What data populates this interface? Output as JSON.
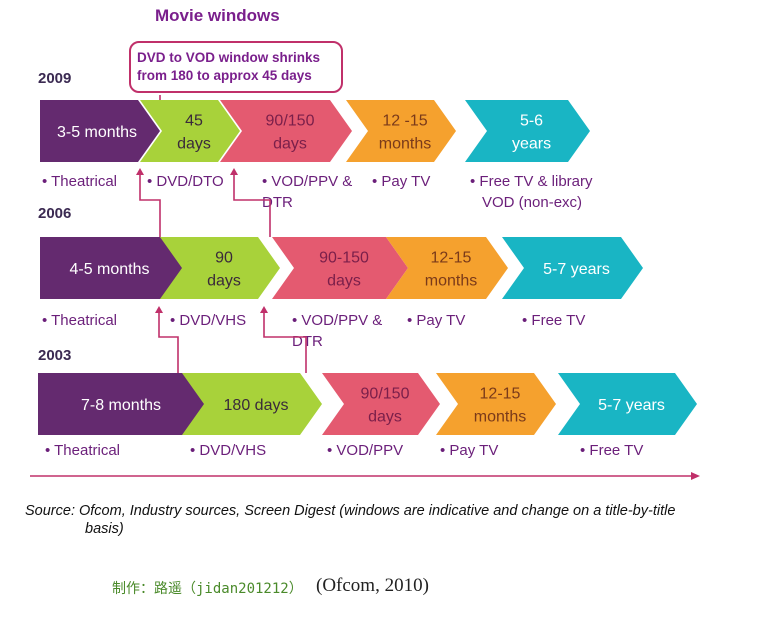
{
  "title": "Movie windows",
  "callout": {
    "line1": "DVD to VOD window shrinks",
    "line2": "from 180 to approx 45 days"
  },
  "rows": [
    {
      "year": "2009",
      "segments": [
        {
          "lines": [
            "3-5 months"
          ],
          "color": "#642a6f",
          "text_color": "#ffffff"
        },
        {
          "lines": [
            "45",
            "days"
          ],
          "color": "#a8d23a",
          "text_color": "#3a2a3a"
        },
        {
          "lines": [
            "90/150",
            "days"
          ],
          "color": "#e45a70",
          "text_color": "#7a1f4a"
        },
        {
          "lines": [
            "12 -15",
            "months"
          ],
          "color": "#f5a12e",
          "text_color": "#7a3a1a"
        },
        {
          "lines": [
            "5-6",
            "years"
          ],
          "color": "#19b5c4",
          "text_color": "#ffffff"
        }
      ],
      "labels": [
        {
          "lines": [
            "• Theatrical"
          ]
        },
        {
          "lines": [
            "• DVD/DTO"
          ]
        },
        {
          "lines": [
            "• VOD/PPV &",
            "DTR"
          ]
        },
        {
          "lines": [
            "• Pay TV"
          ]
        },
        {
          "lines": [
            "• Free TV & library",
            "VOD (non-exc)"
          ]
        }
      ]
    },
    {
      "year": "2006",
      "segments": [
        {
          "lines": [
            "4-5 months"
          ],
          "color": "#642a6f",
          "text_color": "#ffffff"
        },
        {
          "lines": [
            "90",
            "days"
          ],
          "color": "#a8d23a",
          "text_color": "#3a2a3a"
        },
        {
          "lines": [
            "90-150",
            "days"
          ],
          "color": "#e45a70",
          "text_color": "#7a1f4a"
        },
        {
          "lines": [
            "12-15",
            "months"
          ],
          "color": "#f5a12e",
          "text_color": "#7a3a1a"
        },
        {
          "lines": [
            "5-7 years"
          ],
          "color": "#19b5c4",
          "text_color": "#ffffff"
        }
      ],
      "labels": [
        {
          "lines": [
            "• Theatrical"
          ]
        },
        {
          "lines": [
            "• DVD/VHS"
          ]
        },
        {
          "lines": [
            "• VOD/PPV &",
            "DTR"
          ]
        },
        {
          "lines": [
            "• Pay TV"
          ]
        },
        {
          "lines": [
            "• Free TV"
          ]
        }
      ]
    },
    {
      "year": "2003",
      "segments": [
        {
          "lines": [
            "7-8 months"
          ],
          "color": "#642a6f",
          "text_color": "#ffffff"
        },
        {
          "lines": [
            "180 days"
          ],
          "color": "#a8d23a",
          "text_color": "#3a2a3a"
        },
        {
          "lines": [
            "90/150",
            "days"
          ],
          "color": "#e45a70",
          "text_color": "#7a1f4a"
        },
        {
          "lines": [
            "12-15",
            "months"
          ],
          "color": "#f5a12e",
          "text_color": "#7a3a1a"
        },
        {
          "lines": [
            "5-7 years"
          ],
          "color": "#19b5c4",
          "text_color": "#ffffff"
        }
      ],
      "labels": [
        {
          "lines": [
            "• Theatrical"
          ]
        },
        {
          "lines": [
            "• DVD/VHS"
          ]
        },
        {
          "lines": [
            "• VOD/PPV"
          ]
        },
        {
          "lines": [
            "• Pay TV"
          ]
        },
        {
          "lines": [
            "• Free TV"
          ]
        }
      ]
    }
  ],
  "connector_color": "#c0306a",
  "source_line1": "Source: Ofcom, Industry sources, Screen Digest (windows are indicative and change on a title-by-title",
  "source_line2": "basis)",
  "credit": "制作：路遥（jidan201212）",
  "credit_cite": "(Ofcom, 2010)"
}
